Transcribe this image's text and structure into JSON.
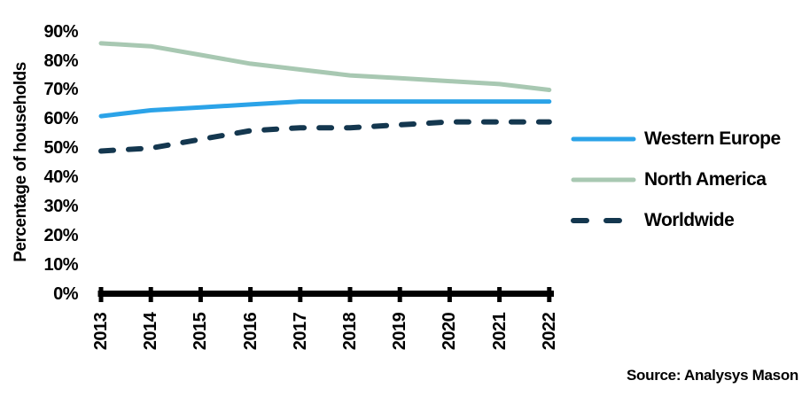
{
  "chart_data": {
    "type": "line",
    "title": "",
    "xlabel": "",
    "ylabel": "Percentage of households",
    "categories": [
      "2013",
      "2014",
      "2015",
      "2016",
      "2017",
      "2018",
      "2019",
      "2020",
      "2021",
      "2022"
    ],
    "series": [
      {
        "name": "Western Europe",
        "color": "#2BA3E8",
        "style": "solid",
        "values": [
          61,
          63,
          64,
          65,
          66,
          66,
          66,
          66,
          66,
          66
        ]
      },
      {
        "name": "North America",
        "color": "#A8C8B2",
        "style": "solid",
        "values": [
          86,
          85,
          82,
          79,
          77,
          75,
          74,
          73,
          72,
          70
        ]
      },
      {
        "name": "Worldwide",
        "color": "#14374F",
        "style": "dashed",
        "values": [
          49,
          50,
          53,
          56,
          57,
          57,
          58,
          59,
          59,
          59
        ]
      }
    ],
    "ylim": [
      0,
      90
    ],
    "yticks": [
      {
        "label": "0%",
        "value": 0
      },
      {
        "label": "10%",
        "value": 10
      },
      {
        "label": "20%",
        "value": 20
      },
      {
        "label": "30%",
        "value": 30
      },
      {
        "label": "40%",
        "value": 40
      },
      {
        "label": "50%",
        "value": 50
      },
      {
        "label": "60%",
        "value": 60
      },
      {
        "label": "70%",
        "value": 70
      },
      {
        "label": "80%",
        "value": 80
      },
      {
        "label": "90%",
        "value": 90
      }
    ],
    "grid": false,
    "legend_position": "right"
  },
  "source_note": "Source: Analysys Mason",
  "colors": {
    "axis": "#000000",
    "text": "#000000",
    "background": "#FFFFFF"
  }
}
